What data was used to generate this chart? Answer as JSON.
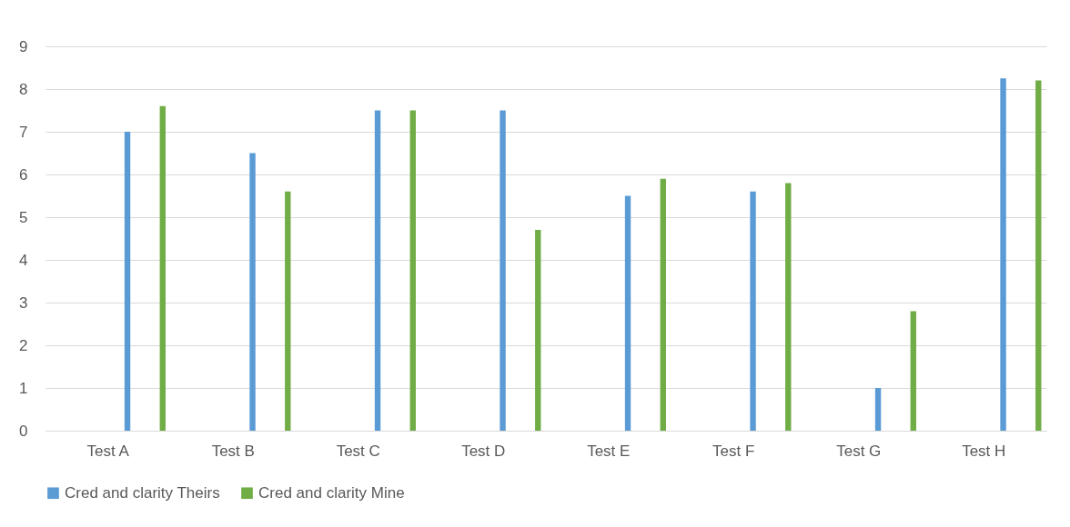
{
  "chart_data": {
    "type": "bar",
    "categories": [
      "Test A",
      "Test B",
      "Test C",
      "Test D",
      "Test E",
      "Test F",
      "Test G",
      "Test H"
    ],
    "series": [
      {
        "name": "Cred and clarity Theirs",
        "color": "#5b9bd5",
        "values": [
          7,
          6.5,
          7.5,
          7.5,
          5.5,
          5.6,
          1,
          8.25
        ]
      },
      {
        "name": "Cred and clarity Mine",
        "color": "#70ad47",
        "values": [
          7.6,
          5.6,
          7.5,
          4.7,
          5.9,
          5.8,
          2.8,
          8.2
        ]
      }
    ],
    "ylim": [
      0,
      9
    ],
    "yticks": [
      0,
      1,
      2,
      3,
      4,
      5,
      6,
      7,
      8,
      9
    ],
    "grid": "y",
    "legend": "bottom"
  }
}
